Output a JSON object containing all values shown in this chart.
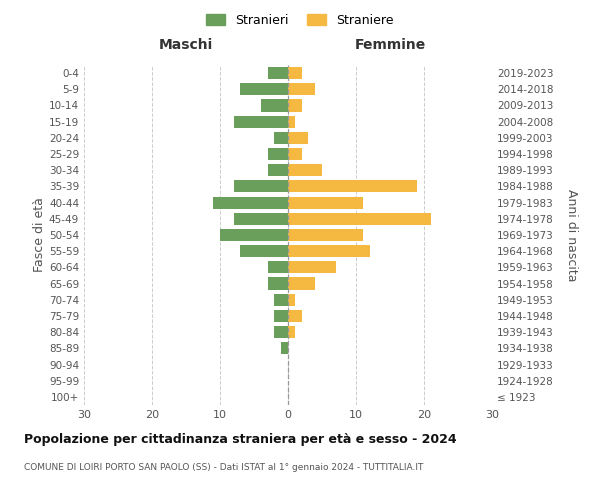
{
  "age_groups": [
    "100+",
    "95-99",
    "90-94",
    "85-89",
    "80-84",
    "75-79",
    "70-74",
    "65-69",
    "60-64",
    "55-59",
    "50-54",
    "45-49",
    "40-44",
    "35-39",
    "30-34",
    "25-29",
    "20-24",
    "15-19",
    "10-14",
    "5-9",
    "0-4"
  ],
  "birth_years": [
    "≤ 1923",
    "1924-1928",
    "1929-1933",
    "1934-1938",
    "1939-1943",
    "1944-1948",
    "1949-1953",
    "1954-1958",
    "1959-1963",
    "1964-1968",
    "1969-1973",
    "1974-1978",
    "1979-1983",
    "1984-1988",
    "1989-1993",
    "1994-1998",
    "1999-2003",
    "2004-2008",
    "2009-2013",
    "2014-2018",
    "2019-2023"
  ],
  "maschi": [
    0,
    0,
    0,
    1,
    2,
    2,
    2,
    3,
    3,
    7,
    10,
    8,
    11,
    8,
    3,
    3,
    2,
    8,
    4,
    7,
    3
  ],
  "femmine": [
    0,
    0,
    0,
    0,
    1,
    2,
    1,
    4,
    7,
    12,
    11,
    21,
    11,
    19,
    5,
    2,
    3,
    1,
    2,
    4,
    2
  ],
  "maschi_color": "#6a9e5b",
  "femmine_color": "#f5b942",
  "bg_color": "#ffffff",
  "grid_color": "#cccccc",
  "title": "Popolazione per cittadinanza straniera per età e sesso - 2024",
  "subtitle": "COMUNE DI LOIRI PORTO SAN PAOLO (SS) - Dati ISTAT al 1° gennaio 2024 - TUTTITALIA.IT",
  "label_maschi_col": "Maschi",
  "label_femmine_col": "Femmine",
  "ylabel_left": "Fasce di età",
  "ylabel_right": "Anni di nascita",
  "legend_maschi": "Stranieri",
  "legend_femmine": "Straniere",
  "xlim": 30,
  "bar_height": 0.75
}
